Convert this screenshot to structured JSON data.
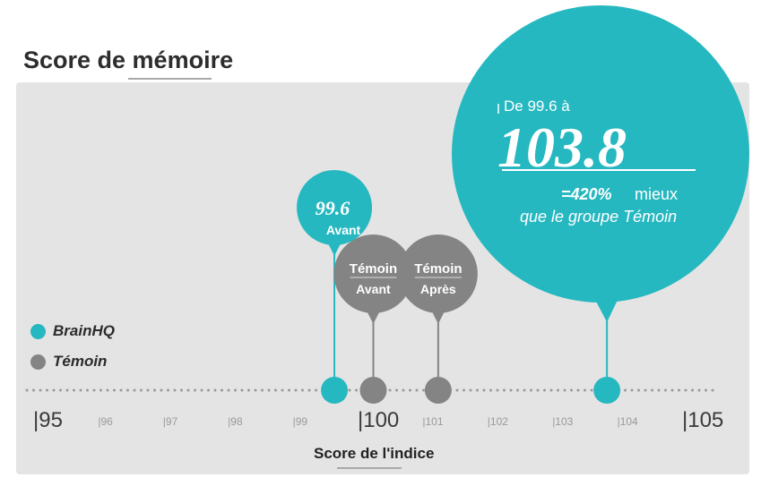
{
  "title": "Score de mémoire",
  "colors": {
    "brainhq": "#26b8c0",
    "temoin": "#848484",
    "panel": "#e4e4e4",
    "dots_line": "#9a9a9a"
  },
  "legend": {
    "brainhq": "BrainHQ",
    "temoin": "Témoin"
  },
  "chart_data": {
    "type": "scatter",
    "xlabel": "Score de l'indice",
    "xlim": [
      95,
      105
    ],
    "ticks_major": [
      "|95",
      "|100",
      "|105"
    ],
    "ticks_minor": [
      "|96",
      "|97",
      "|98",
      "|99",
      "|101",
      "|102",
      "|103",
      "|104"
    ],
    "series": [
      {
        "name": "BrainHQ",
        "points": [
          {
            "x": 99.6,
            "label_value": "99.6",
            "label_text": "Avant"
          },
          {
            "x": 103.8,
            "label_value": "103.8"
          }
        ]
      },
      {
        "name": "Témoin",
        "points": [
          {
            "x": 100.2,
            "label_text": "Témoin",
            "label_sub": "Avant"
          },
          {
            "x": 101.2,
            "label_text": "Témoin",
            "label_sub": "Après"
          }
        ]
      }
    ],
    "callout": {
      "line1": "De 99.6 à",
      "big_value": "103.8",
      "line3_bold": "=420%",
      "line3_rest": " mieux",
      "line4": "que le groupe Témoin"
    }
  }
}
